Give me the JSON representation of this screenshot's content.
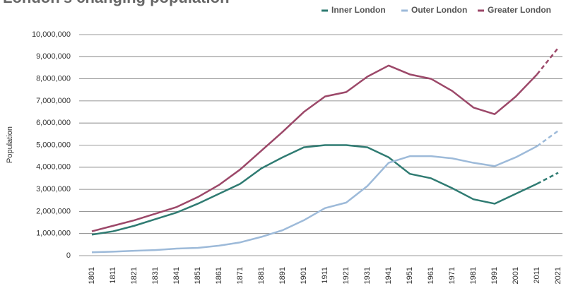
{
  "chart_data": {
    "type": "line",
    "title": "London's changing population",
    "y_label": "Population",
    "categories": [
      "1801",
      "1811",
      "1821",
      "1831",
      "1841",
      "1851",
      "1861",
      "1871",
      "1881",
      "1891",
      "1901",
      "1911",
      "1921",
      "1931",
      "1941",
      "1951",
      "1961",
      "1971",
      "1981",
      "1991",
      "2001",
      "2011",
      "2021"
    ],
    "series": [
      {
        "name": "Inner London",
        "color": "#2f7b72",
        "values": [
          950000,
          1100000,
          1350000,
          1650000,
          1950000,
          2350000,
          2800000,
          3250000,
          3950000,
          4450000,
          4900000,
          5000000,
          5000000,
          4900000,
          4450000,
          3700000,
          3500000,
          3050000,
          2550000,
          2350000,
          2800000,
          3250000,
          3750000
        ]
      },
      {
        "name": "Outer London",
        "color": "#9dbad9",
        "values": [
          150000,
          180000,
          220000,
          250000,
          320000,
          350000,
          450000,
          600000,
          850000,
          1150000,
          1600000,
          2150000,
          2400000,
          3150000,
          4200000,
          4500000,
          4500000,
          4400000,
          4200000,
          4050000,
          4450000,
          4950000,
          5650000
        ]
      },
      {
        "name": "Greater London",
        "color": "#9c4869",
        "values": [
          1100000,
          1350000,
          1600000,
          1900000,
          2200000,
          2650000,
          3200000,
          3900000,
          4750000,
          5600000,
          6500000,
          7200000,
          7400000,
          8100000,
          8600000,
          8200000,
          8000000,
          7450000,
          6700000,
          6400000,
          7200000,
          8200000,
          9400000
        ]
      }
    ],
    "projected_from": "2011",
    "ylim": [
      0,
      10000000
    ],
    "yticks": [
      0,
      {
        "value": 1000000,
        "label": "1,000,000"
      },
      {
        "value": 2000000,
        "label": "2,000,000"
      },
      {
        "value": 3000000,
        "label": "3,000,000"
      },
      {
        "value": 4000000,
        "label": "4,000,000"
      },
      {
        "value": 5000000,
        "label": "5,000,000"
      },
      {
        "value": 6000000,
        "label": "6,000,000"
      },
      {
        "value": 7000000,
        "label": "7,000,000"
      },
      {
        "value": 8000000,
        "label": "8,000,000"
      },
      {
        "value": 9000000,
        "label": "9,000,000"
      },
      {
        "value": 10000000,
        "label": "10,000,000"
      }
    ],
    "grid": true,
    "legend": "top-right"
  }
}
